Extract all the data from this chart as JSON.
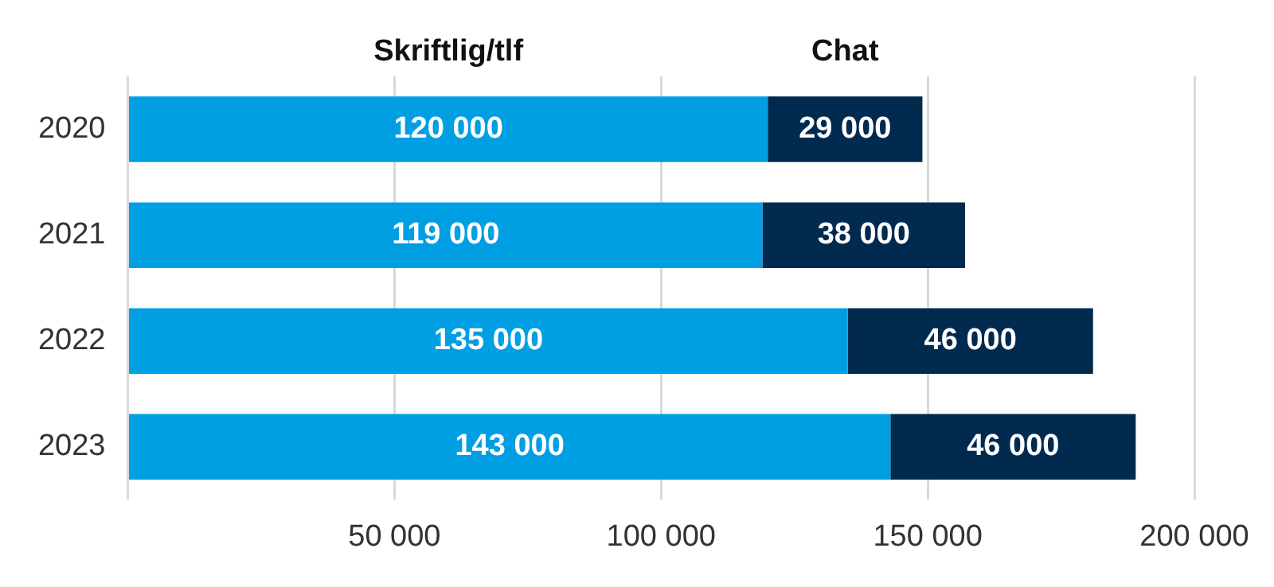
{
  "chart_data": {
    "type": "bar",
    "orientation": "horizontal",
    "stacked": true,
    "categories": [
      "2020",
      "2021",
      "2022",
      "2023"
    ],
    "series": [
      {
        "name": "Skriftlig/tlf",
        "color": "#009fe3",
        "values": [
          120000,
          119000,
          135000,
          143000
        ],
        "value_labels": [
          "120 000",
          "119 000",
          "135 000",
          "143 000"
        ]
      },
      {
        "name": "Chat",
        "color": "#002b4f",
        "values": [
          29000,
          38000,
          46000,
          46000
        ],
        "value_labels": [
          "29 000",
          "38 000",
          "46 000",
          "46 000"
        ]
      }
    ],
    "xlim": [
      0,
      200000
    ],
    "xticks": [
      {
        "value": 0,
        "label": null
      },
      {
        "value": 50000,
        "label": "50 000"
      },
      {
        "value": 100000,
        "label": "100 000"
      },
      {
        "value": 150000,
        "label": "150 000"
      },
      {
        "value": 200000,
        "label": "200 000"
      }
    ],
    "grid": "x",
    "legend": false
  }
}
